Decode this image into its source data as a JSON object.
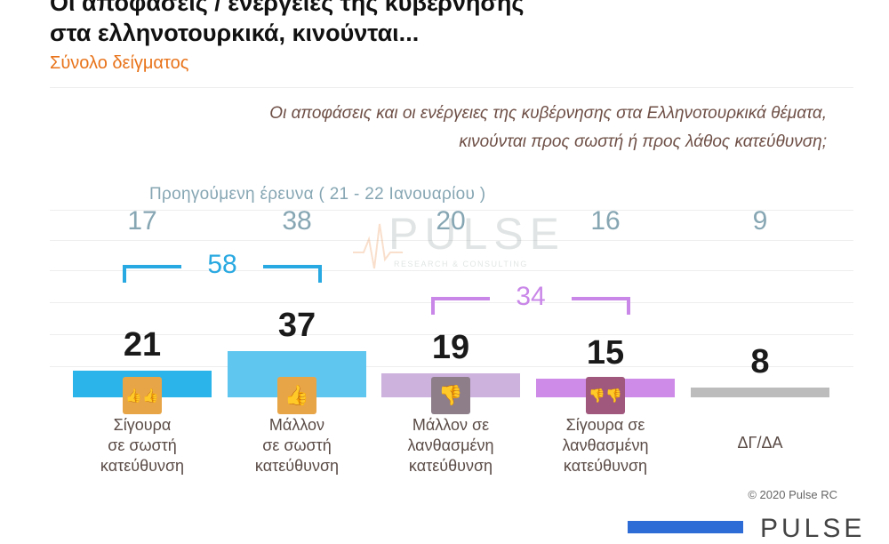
{
  "title_line1": "Οι αποφάσεις / ενέργειες της κυβέρνησης",
  "title_line2": "στα ελληνοτουρκικά, κινούνται...",
  "subtitle": "Σύνολο δείγματος",
  "question_line1": "Οι αποφάσεις και οι ενέργειες της κυβέρνησης στα Ελληνοτουρκικά θέματα,",
  "question_line2": "κινούνται προς σωστή ή προς λάθος κατεύθυνση;",
  "previous_caption": "Προηγούμενη έρευνα   ( 21 - 22  Ιανουαρίου )",
  "watermark": {
    "name": "PULSE",
    "tagline": "RESEARCH & CONSULTING"
  },
  "copyright": "© 2020 Pulse RC",
  "footer_logo": "PULSE",
  "chart_data": {
    "type": "bar",
    "categories": [
      "Σίγουρα σε σωστή κατεύθυνση",
      "Μάλλον σε σωστή κατεύθυνση",
      "Μάλλον σε λανθασμένη κατεύθυνση",
      "Σίγουρα σε λανθασμένη κατεύθυνση",
      "ΔΓ/ΔΑ"
    ],
    "category_lines": [
      [
        "Σίγουρα",
        "σε σωστή",
        "κατεύθυνση"
      ],
      [
        "Μάλλον",
        "σε σωστή",
        "κατεύθυνση"
      ],
      [
        "Μάλλον σε",
        "λανθασμένη",
        "κατεύθυνση"
      ],
      [
        "Σίγουρα σε",
        "λανθασμένη",
        "κατεύθυνση"
      ],
      [
        "ΔΓ/ΔΑ"
      ]
    ],
    "series": [
      {
        "values": [
          21,
          37,
          19,
          15,
          8
        ]
      },
      {
        "name": "Προηγούμενη έρευνα (21 - 22 Ιανουαρίου)",
        "values": [
          17,
          38,
          20,
          16,
          9
        ]
      }
    ],
    "groups": [
      {
        "label": "58",
        "categories": [
          0,
          1
        ],
        "color": "#29a9e1"
      },
      {
        "label": "34",
        "categories": [
          2,
          3
        ],
        "color": "#c987e8"
      }
    ],
    "colors": [
      "#2bb4ea",
      "#5ec6ef",
      "#cdb2de",
      "#cf8be8",
      "#bcbcbc"
    ],
    "icon_colors": [
      "#e8a548",
      "#e8a548",
      "#8d7e8a",
      "#a0587d",
      ""
    ],
    "icons": [
      "double-thumbs-up-icon",
      "thumbs-up-icon",
      "thumbs-down-icon",
      "double-thumbs-down-icon",
      ""
    ]
  }
}
